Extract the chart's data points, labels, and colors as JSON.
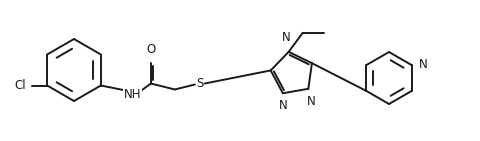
{
  "bg_color": "#ffffff",
  "line_color": "#1a1a1a",
  "line_width": 1.4,
  "font_size": 8.5,
  "figsize": [
    4.81,
    1.41
  ],
  "dpi": 100,
  "xlim": [
    0,
    9.62
  ],
  "ylim": [
    0,
    2.82
  ]
}
